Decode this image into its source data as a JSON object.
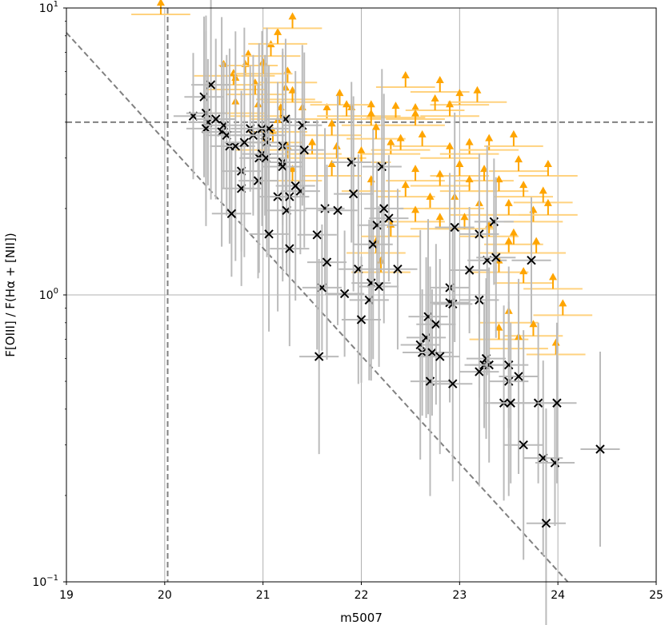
{
  "chart_data": {
    "type": "scatter",
    "title": "",
    "xlabel": "m5007",
    "ylabel": "F[OIII] / F(Hα + [NII])",
    "xlim": [
      19,
      25
    ],
    "ylim": [
      0.1,
      10
    ],
    "yscale": "log",
    "grid": true,
    "x_ticks": [
      "19",
      "20",
      "21",
      "22",
      "23",
      "24",
      "25"
    ],
    "y_ticks": [
      {
        "base": "10",
        "exp": "1",
        "value": 10
      },
      {
        "base": "10",
        "exp": "0",
        "value": 1
      },
      {
        "base": "10",
        "exp": "−1",
        "value": 0.1
      }
    ],
    "colors": {
      "detections": "#000000",
      "detection_errors": "#bbbbbb",
      "limits": "#ffa500",
      "limit_errors": "#ffd27f",
      "guide_lines": "#808080",
      "grid": "#b0b0b0"
    },
    "reference_lines": [
      {
        "type": "vertical",
        "x": 20.03,
        "style": "dashed"
      },
      {
        "type": "horizontal",
        "y": 4.0,
        "style": "dashed"
      },
      {
        "type": "diagonal",
        "points": [
          [
            19,
            8.2
          ],
          [
            24.1,
            0.1
          ]
        ],
        "style": "dashed"
      }
    ],
    "series": [
      {
        "marker": "x",
        "x_err": 0.2,
        "points": [
          [
            20.29,
            4.2
          ],
          [
            20.4,
            4.9
          ],
          [
            20.42,
            4.3
          ],
          [
            20.47,
            5.4
          ],
          [
            20.44,
            4.0
          ],
          [
            20.52,
            4.1
          ],
          [
            20.42,
            3.8
          ],
          [
            20.58,
            3.7
          ],
          [
            20.6,
            3.9
          ],
          [
            20.63,
            3.6
          ],
          [
            20.66,
            3.3
          ],
          [
            20.72,
            3.3
          ],
          [
            20.68,
            1.92
          ],
          [
            20.78,
            2.7
          ],
          [
            20.78,
            2.35
          ],
          [
            20.81,
            3.4
          ],
          [
            20.87,
            3.8
          ],
          [
            20.9,
            3.6
          ],
          [
            20.95,
            2.5
          ],
          [
            20.96,
            3.0
          ],
          [
            20.99,
            3.1
          ],
          [
            21.02,
            3.6
          ],
          [
            20.99,
            3.8
          ],
          [
            21.04,
            3.4
          ],
          [
            21.06,
            3.8
          ],
          [
            21.03,
            3.0
          ],
          [
            21.06,
            1.63
          ],
          [
            21.15,
            2.2
          ],
          [
            21.2,
            2.9
          ],
          [
            21.23,
            4.1
          ],
          [
            21.2,
            3.3
          ],
          [
            21.2,
            2.8
          ],
          [
            21.24,
            1.97
          ],
          [
            21.27,
            2.2
          ],
          [
            21.27,
            1.45
          ],
          [
            21.33,
            2.4
          ],
          [
            21.38,
            2.3
          ],
          [
            21.4,
            3.9
          ],
          [
            21.42,
            3.2
          ],
          [
            21.55,
            1.62
          ],
          [
            21.6,
            1.06
          ],
          [
            21.63,
            2.0
          ],
          [
            21.65,
            1.3
          ],
          [
            21.76,
            1.97
          ],
          [
            21.83,
            1.01
          ],
          [
            21.9,
            2.9
          ],
          [
            21.92,
            2.25
          ],
          [
            21.97,
            1.23
          ],
          [
            22.0,
            0.82
          ],
          [
            22.08,
            0.96
          ],
          [
            22.1,
            1.1
          ],
          [
            22.12,
            1.5
          ],
          [
            22.16,
            1.75
          ],
          [
            22.18,
            1.07
          ],
          [
            22.21,
            2.8
          ],
          [
            22.23,
            2.0
          ],
          [
            22.28,
            1.85
          ],
          [
            22.37,
            1.23
          ],
          [
            21.57,
            0.61
          ],
          [
            22.6,
            0.67
          ],
          [
            22.62,
            0.63
          ],
          [
            22.66,
            0.71
          ],
          [
            22.68,
            0.84
          ],
          [
            22.7,
            0.5
          ],
          [
            22.72,
            0.63
          ],
          [
            22.76,
            0.79
          ],
          [
            22.8,
            0.61
          ],
          [
            22.9,
            1.06
          ],
          [
            22.9,
            0.94
          ],
          [
            22.93,
            0.93
          ],
          [
            22.93,
            0.49
          ],
          [
            22.95,
            1.72
          ],
          [
            23.1,
            1.22
          ],
          [
            23.2,
            1.63
          ],
          [
            23.2,
            0.96
          ],
          [
            23.2,
            0.54
          ],
          [
            23.25,
            0.57
          ],
          [
            23.27,
            0.6
          ],
          [
            23.3,
            0.57
          ],
          [
            23.28,
            1.32
          ],
          [
            23.35,
            1.8
          ],
          [
            23.37,
            1.35
          ],
          [
            23.45,
            0.42
          ],
          [
            23.5,
            0.5
          ],
          [
            23.5,
            0.57
          ],
          [
            23.52,
            0.42
          ],
          [
            23.6,
            0.52
          ],
          [
            23.65,
            0.3
          ],
          [
            23.73,
            1.32
          ],
          [
            23.8,
            0.42
          ],
          [
            23.85,
            0.27
          ],
          [
            23.88,
            0.16
          ],
          [
            23.97,
            0.26
          ],
          [
            23.99,
            0.42
          ],
          [
            24.43,
            0.29
          ]
        ]
      },
      {
        "marker": "upward-arrow",
        "x_err": 0.3,
        "points": [
          [
            19.96,
            9.5
          ],
          [
            20.72,
            4.3
          ],
          [
            20.95,
            4.2
          ],
          [
            21.18,
            4.1
          ],
          [
            21.4,
            4.1
          ],
          [
            21.65,
            4.1
          ],
          [
            21.9,
            4.1
          ],
          [
            22.1,
            4.2
          ],
          [
            22.35,
            4.15
          ],
          [
            22.55,
            4.1
          ],
          [
            20.82,
            5.8
          ],
          [
            20.85,
            6.3
          ],
          [
            21.08,
            6.8
          ],
          [
            21.15,
            7.5
          ],
          [
            21.3,
            8.5
          ],
          [
            21.25,
            5.5
          ],
          [
            21.23,
            4.8
          ],
          [
            20.72,
            5.2
          ],
          [
            20.92,
            5.0
          ],
          [
            21.3,
            4.7
          ],
          [
            20.6,
            5.8
          ],
          [
            20.7,
            5.4
          ],
          [
            21.0,
            5.9
          ],
          [
            22.45,
            5.3
          ],
          [
            22.8,
            5.1
          ],
          [
            23.0,
            4.6
          ],
          [
            23.18,
            4.7
          ],
          [
            22.75,
            4.4
          ],
          [
            22.9,
            4.2
          ],
          [
            22.55,
            3.9
          ],
          [
            21.78,
            4.6
          ],
          [
            21.85,
            4.2
          ],
          [
            22.1,
            3.9
          ],
          [
            21.7,
            3.6
          ],
          [
            21.1,
            3.4
          ],
          [
            21.02,
            3.2
          ],
          [
            21.25,
            3.0
          ],
          [
            21.5,
            3.1
          ],
          [
            21.75,
            3.0
          ],
          [
            22.0,
            2.9
          ],
          [
            22.3,
            3.1
          ],
          [
            22.62,
            3.3
          ],
          [
            22.9,
            3.0
          ],
          [
            23.1,
            3.1
          ],
          [
            23.3,
            3.2
          ],
          [
            23.55,
            3.3
          ],
          [
            23.0,
            2.6
          ],
          [
            23.25,
            2.5
          ],
          [
            23.6,
            2.7
          ],
          [
            23.9,
            2.6
          ],
          [
            22.55,
            2.5
          ],
          [
            22.8,
            2.4
          ],
          [
            23.1,
            2.3
          ],
          [
            23.4,
            2.3
          ],
          [
            23.65,
            2.2
          ],
          [
            23.85,
            2.1
          ],
          [
            22.45,
            2.2
          ],
          [
            22.7,
            2.0
          ],
          [
            22.95,
            2.0
          ],
          [
            23.2,
            1.9
          ],
          [
            23.5,
            1.9
          ],
          [
            23.75,
            1.8
          ],
          [
            22.55,
            1.8
          ],
          [
            22.8,
            1.7
          ],
          [
            23.05,
            1.7
          ],
          [
            23.3,
            1.6
          ],
          [
            23.55,
            1.5
          ],
          [
            22.3,
            1.6
          ],
          [
            22.15,
            1.4
          ],
          [
            22.2,
            1.2
          ],
          [
            23.5,
            1.4
          ],
          [
            23.78,
            1.4
          ],
          [
            23.4,
            1.2
          ],
          [
            23.65,
            1.1
          ],
          [
            23.95,
            1.05
          ],
          [
            24.05,
            0.85
          ],
          [
            23.5,
            0.8
          ],
          [
            23.75,
            0.72
          ],
          [
            23.4,
            0.7
          ],
          [
            23.6,
            0.65
          ],
          [
            23.98,
            0.62
          ],
          [
            23.9,
            1.9
          ],
          [
            22.1,
            2.3
          ],
          [
            21.7,
            2.6
          ],
          [
            21.3,
            2.5
          ],
          [
            21.15,
            3.7
          ],
          [
            22.15,
            3.5
          ],
          [
            22.4,
            3.2
          ]
        ]
      }
    ]
  }
}
